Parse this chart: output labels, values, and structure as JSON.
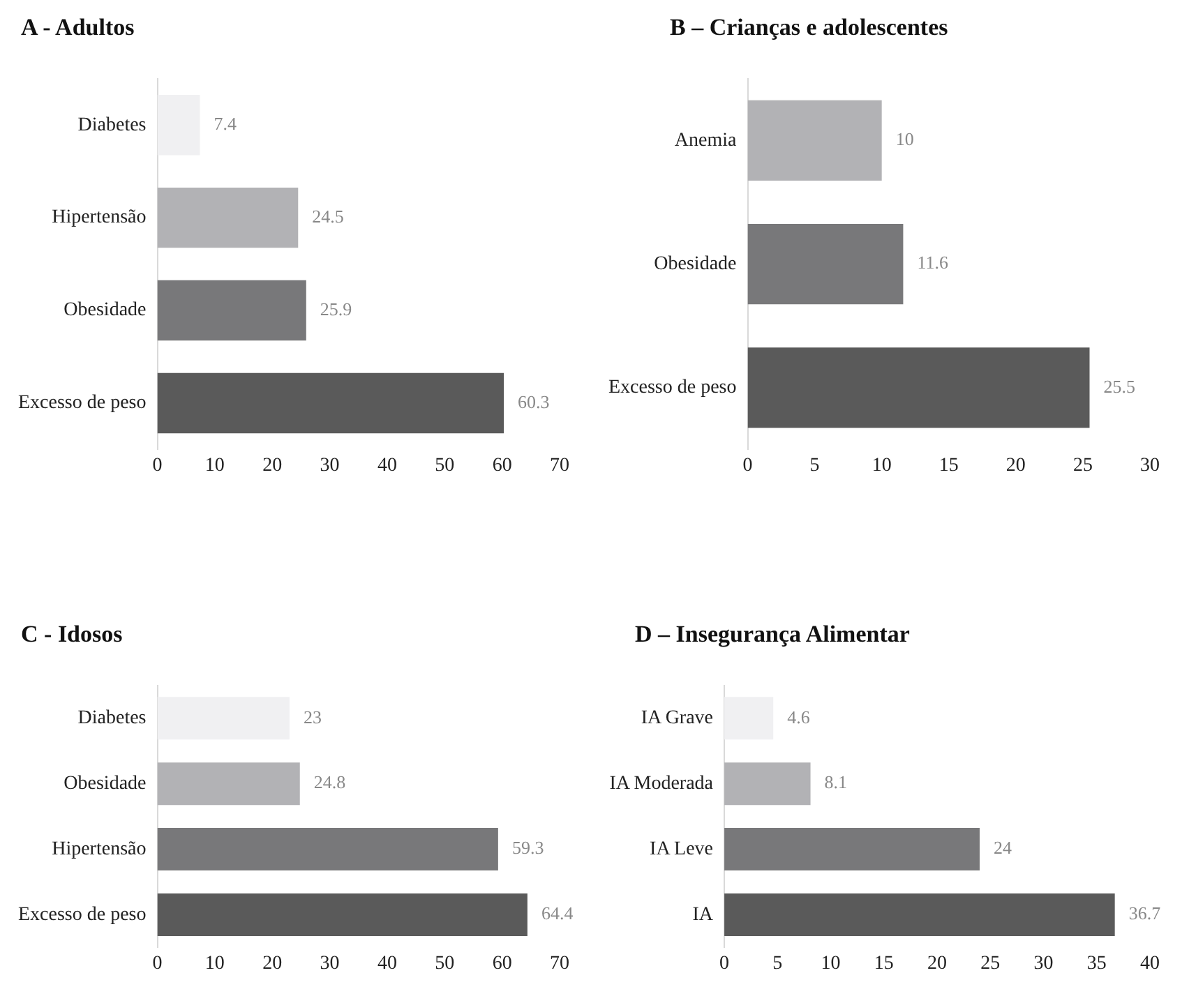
{
  "chart_data": [
    {
      "type": "bar",
      "title": "A - Adultos",
      "orientation": "horizontal",
      "categories": [
        "Diabetes",
        "Hipertensão",
        "Obesidade",
        "Excesso de peso"
      ],
      "values": [
        7.4,
        24.5,
        25.9,
        60.3
      ],
      "colors": [
        "#f0f0f2",
        "#b2b2b5",
        "#78787a",
        "#5a5a5a"
      ],
      "xlim": [
        0,
        70
      ],
      "xticks": [
        0,
        10,
        20,
        30,
        40,
        50,
        60,
        70
      ],
      "data_labels": true,
      "grid": false,
      "legend": false
    },
    {
      "type": "bar",
      "title": "B – Crianças e adolescentes",
      "orientation": "horizontal",
      "categories": [
        "Anemia",
        "Obesidade",
        "Excesso de peso"
      ],
      "values": [
        10,
        11.6,
        25.5
      ],
      "colors": [
        "#b2b2b5",
        "#78787a",
        "#5a5a5a"
      ],
      "xlim": [
        0,
        30
      ],
      "xticks": [
        0,
        5,
        10,
        15,
        20,
        25,
        30
      ],
      "data_labels": true,
      "grid": false,
      "legend": false
    },
    {
      "type": "bar",
      "title": "C - Idosos",
      "orientation": "horizontal",
      "categories": [
        "Diabetes",
        "Obesidade",
        "Hipertensão",
        "Excesso de peso"
      ],
      "values": [
        23,
        24.8,
        59.3,
        64.4
      ],
      "colors": [
        "#f0f0f2",
        "#b2b2b5",
        "#78787a",
        "#5a5a5a"
      ],
      "xlim": [
        0,
        70
      ],
      "xticks": [
        0,
        10,
        20,
        30,
        40,
        50,
        60,
        70
      ],
      "data_labels": true,
      "grid": false,
      "legend": false
    },
    {
      "type": "bar",
      "title": "D – Insegurança Alimentar",
      "orientation": "horizontal",
      "categories": [
        "IA Grave",
        "IA Moderada",
        "IA Leve",
        "IA"
      ],
      "values": [
        4.6,
        8.1,
        24,
        36.7
      ],
      "colors": [
        "#f0f0f2",
        "#b2b2b5",
        "#78787a",
        "#5a5a5a"
      ],
      "xlim": [
        0,
        40
      ],
      "xticks": [
        0,
        5,
        10,
        15,
        20,
        25,
        30,
        35,
        40
      ],
      "data_labels": true,
      "grid": false,
      "legend": false
    }
  ]
}
